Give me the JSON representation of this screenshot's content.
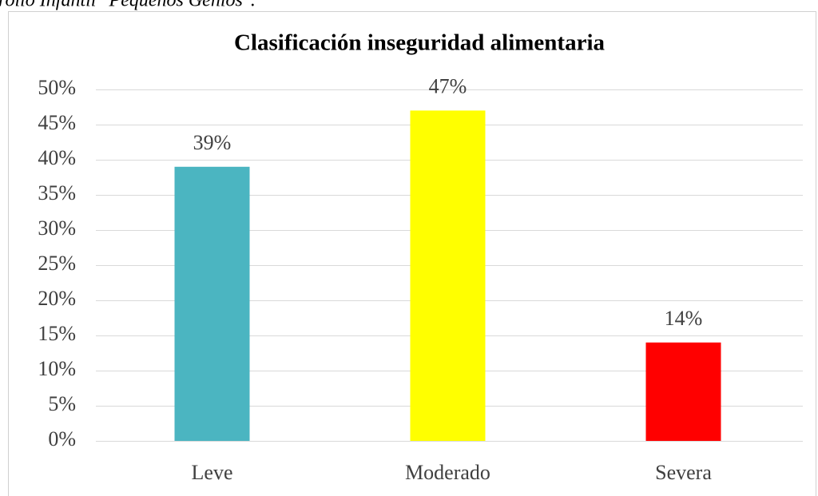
{
  "caption": "rollo Infantil \"Pequeños Genios\".",
  "chart_data": {
    "type": "bar",
    "title": "Clasificación inseguridad alimentaria",
    "categories": [
      "Leve",
      "Moderado",
      "Severa"
    ],
    "values": [
      39,
      47,
      14
    ],
    "value_labels": [
      "39%",
      "47%",
      "14%"
    ],
    "colors": [
      "#4bb5c1",
      "#ffff00",
      "#ff0000"
    ],
    "ylim": [
      0,
      50
    ],
    "yticks": [
      {
        "value": 0,
        "label": "0%"
      },
      {
        "value": 5,
        "label": "5%"
      },
      {
        "value": 10,
        "label": "10%"
      },
      {
        "value": 15,
        "label": "15%"
      },
      {
        "value": 20,
        "label": "20%"
      },
      {
        "value": 25,
        "label": "25%"
      },
      {
        "value": 30,
        "label": "30%"
      },
      {
        "value": 35,
        "label": "35%"
      },
      {
        "value": 40,
        "label": "40%"
      },
      {
        "value": 45,
        "label": "45%"
      },
      {
        "value": 50,
        "label": "50%"
      }
    ],
    "grid": true
  }
}
